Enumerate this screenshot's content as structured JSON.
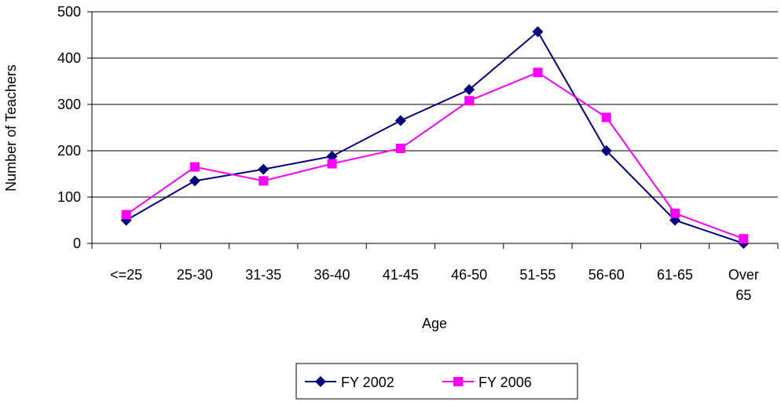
{
  "chart_data": {
    "type": "line",
    "x_label": "Age",
    "y_label": "Number of Teachers",
    "categories": [
      "<=25",
      "25-30",
      "31-35",
      "36-40",
      "41-45",
      "46-50",
      "51-55",
      "56-60",
      "61-65",
      "Over 65"
    ],
    "series": [
      {
        "name": "FY 2002",
        "color": "#000080",
        "marker": "diamond",
        "values": [
          50,
          135,
          160,
          188,
          265,
          332,
          457,
          200,
          50,
          0
        ]
      },
      {
        "name": "FY 2006",
        "color": "#ff00ff",
        "marker": "square",
        "values": [
          62,
          165,
          135,
          172,
          205,
          308,
          369,
          272,
          65,
          10
        ]
      }
    ],
    "ylim": [
      0,
      500
    ],
    "yticks": [
      0,
      100,
      200,
      300,
      400,
      500
    ],
    "grid": true,
    "legend": "bottom"
  }
}
